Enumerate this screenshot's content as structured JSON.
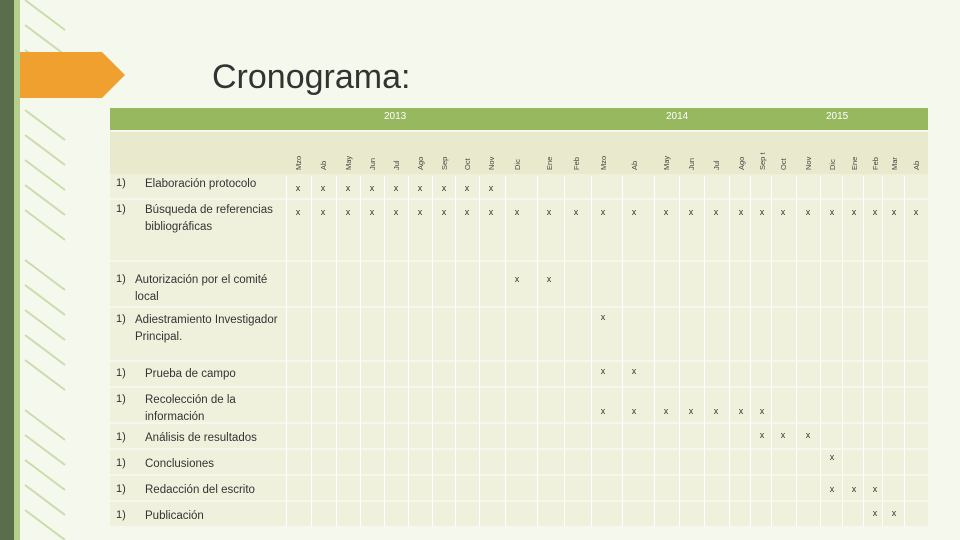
{
  "title": "Cronograma:",
  "years": [
    "2013",
    "2014",
    "2015"
  ],
  "months": [
    "Mzo",
    "Ab",
    "May",
    "Jun",
    "Jul",
    "Ago",
    "Sep",
    "Oct",
    "Nov",
    "Dic",
    "Ene",
    "Feb",
    "Mzo",
    "Ab",
    "May",
    "Jun",
    "Jul",
    "Ago",
    "Sep t",
    "Oct",
    "Nov",
    "Dic",
    "Ene",
    "Feb",
    "Mar",
    "Ab"
  ],
  "rows": [
    {
      "num": "1)",
      "label": "Elaboración protocolo",
      "marks": [
        "x",
        "x",
        "x",
        "x",
        "x",
        "x",
        "x",
        "x",
        "x"
      ]
    },
    {
      "num": "1)",
      "label": "Búsqueda de referencias bibliográficas",
      "marks": [
        "x",
        "x",
        "x",
        "x",
        "x",
        "x",
        "x",
        "x",
        "x",
        "x",
        "x",
        "x",
        "x",
        "x",
        "x",
        "x",
        "x",
        "x",
        "x",
        "x",
        "x",
        "x",
        "x",
        "x",
        "x",
        "x"
      ]
    },
    {
      "num": "1)",
      "label": "Autorización por el comité local",
      "marks": [
        "x",
        "x"
      ]
    },
    {
      "num": "1)",
      "label": "Adiestramiento Investigador Principal.",
      "marks": [
        "x"
      ]
    },
    {
      "num": "1)",
      "label": "Prueba de campo",
      "marks": [
        "x",
        "x"
      ]
    },
    {
      "num": "1)",
      "label": "Recolección de la información",
      "marks": [
        "x",
        "x",
        "x",
        "x",
        "x",
        "x",
        "x"
      ]
    },
    {
      "num": "1)",
      "label": "Análisis de resultados",
      "marks": [
        "x",
        "x",
        "x"
      ]
    },
    {
      "num": "1)",
      "label": "Conclusiones",
      "marks": [
        "x"
      ]
    },
    {
      "num": "1)",
      "label": "Redacción del escrito",
      "marks": [
        "x",
        "x",
        "x"
      ]
    },
    {
      "num": "1)",
      "label": "Publicación",
      "marks": [
        "x",
        "x"
      ]
    }
  ]
}
